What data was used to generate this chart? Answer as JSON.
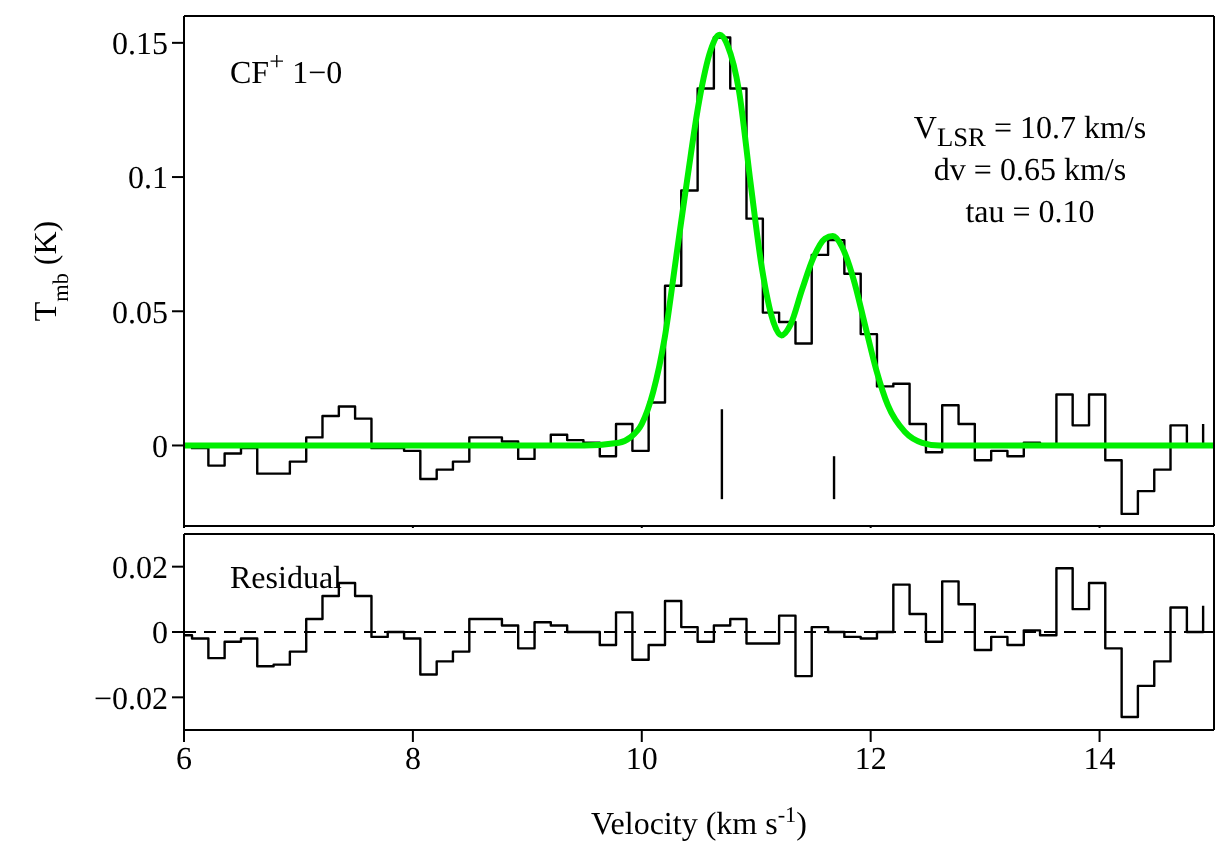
{
  "chart_data": [
    {
      "type": "line",
      "ylabel": "T$_{mb}$ (K)",
      "annotations": [
        "CF$^{+}$ 1−0",
        "V$_{LSR}$ = 10.7 km/s",
        "dv = 0.65 km/s",
        "tau = 0.10"
      ],
      "xlim": [
        6,
        15
      ],
      "xticks": [
        6,
        8,
        10,
        12,
        14
      ],
      "ylim": [
        -0.03,
        0.16
      ],
      "yticks": [
        0,
        0.05,
        0.1,
        0.15
      ],
      "tick_labels": "y",
      "series": [
        {
          "type": "step",
          "color": "#000000",
          "x": [
            6,
            6.07,
            6.213,
            6.355,
            6.498,
            6.64,
            6.783,
            6.925,
            7.068,
            7.21,
            7.353,
            7.495,
            7.638,
            7.78,
            7.923,
            8.065,
            8.208,
            8.35,
            8.493,
            8.635,
            8.778,
            8.92,
            9.063,
            9.205,
            9.348,
            9.49,
            9.633,
            9.775,
            9.918,
            10.06,
            10.203,
            10.345,
            10.488,
            10.63,
            10.773,
            10.915,
            11.058,
            11.2,
            11.343,
            11.485,
            11.628,
            11.77,
            11.913,
            12.055,
            12.198,
            12.34,
            12.483,
            12.625,
            12.768,
            12.91,
            13.053,
            13.195,
            13.338,
            13.48,
            13.623,
            13.765,
            13.908,
            14.05,
            14.193,
            14.335,
            14.478,
            14.62,
            14.763,
            14.905
          ],
          "values": [
            0,
            -0.001,
            -0.0075,
            -0.003,
            -0.001,
            -0.0105,
            -0.0105,
            -0.006,
            0.003,
            0.011,
            0.0145,
            0.01,
            -0.001,
            -0.001,
            -0.002,
            -0.0125,
            -0.009,
            -0.006,
            0.003,
            0.003,
            0.0015,
            -0.005,
            0,
            0.004,
            0.002,
            0.001,
            -0.004,
            0.008,
            -0.002,
            0.016,
            0.0595,
            0.095,
            0.133,
            0.152,
            0.133,
            0.0845,
            0.0495,
            0.046,
            0.038,
            0.071,
            0.0765,
            0.064,
            0.0415,
            0.022,
            0.023,
            0.008,
            -0.0025,
            0.015,
            0.008,
            -0.0055,
            -0.002,
            -0.004,
            0.001,
            0,
            0.019,
            0.0075,
            0.019,
            -0.0055,
            -0.0255,
            -0.017,
            -0.009,
            0.0075,
            0,
            0.008
          ]
        },
        {
          "type": "line",
          "color": "#00ee00",
          "x": [
            6,
            9.5,
            9.8,
            9.9,
            10.0,
            10.1,
            10.2,
            10.3,
            10.4,
            10.5,
            10.6,
            10.68,
            10.75,
            10.85,
            10.95,
            11.05,
            11.15,
            11.22,
            11.3,
            11.4,
            11.5,
            11.6,
            11.67,
            11.75,
            11.85,
            11.95,
            12.05,
            12.15,
            12.3,
            12.45,
            12.6,
            15
          ],
          "values": [
            0,
            0,
            0.001,
            0.003,
            0.008,
            0.02,
            0.04,
            0.07,
            0.1,
            0.128,
            0.147,
            0.153,
            0.149,
            0.132,
            0.098,
            0.066,
            0.046,
            0.041,
            0.045,
            0.058,
            0.07,
            0.077,
            0.078,
            0.074,
            0.062,
            0.045,
            0.028,
            0.015,
            0.005,
            0.001,
            0,
            0
          ]
        },
        {
          "type": "line",
          "color": "#000000",
          "x": [
            10.7,
            10.7
          ],
          "values": [
            0.0135,
            -0.02
          ]
        },
        {
          "type": "line",
          "color": "#000000",
          "x": [
            11.68,
            11.68
          ],
          "values": [
            -0.004,
            -0.02
          ]
        }
      ]
    },
    {
      "type": "line",
      "xlabel": "Velocity (km s$^{-1}$)",
      "annotations": [
        "Residual"
      ],
      "xlim": [
        6,
        15
      ],
      "xticks": [
        6,
        8,
        10,
        12,
        14
      ],
      "ylim": [
        -0.03,
        0.03
      ],
      "yticks": [
        {
          "value": -0.02,
          "label": "−0.02"
        },
        0,
        0.02
      ],
      "ref_lines": [
        {
          "axis": "y",
          "value": 0,
          "line_style": "dashed",
          "color": "#000000"
        }
      ],
      "series": [
        {
          "type": "step",
          "color": "#000000",
          "x": [
            6,
            6.07,
            6.213,
            6.355,
            6.498,
            6.64,
            6.783,
            6.925,
            7.068,
            7.21,
            7.353,
            7.495,
            7.638,
            7.78,
            7.923,
            8.065,
            8.208,
            8.35,
            8.493,
            8.635,
            8.778,
            8.92,
            9.063,
            9.205,
            9.348,
            9.49,
            9.633,
            9.775,
            9.918,
            10.06,
            10.203,
            10.345,
            10.488,
            10.63,
            10.773,
            10.915,
            11.058,
            11.2,
            11.343,
            11.485,
            11.628,
            11.77,
            11.913,
            12.055,
            12.198,
            12.34,
            12.483,
            12.625,
            12.768,
            12.91,
            13.053,
            13.195,
            13.338,
            13.48,
            13.623,
            13.765,
            13.908,
            14.05,
            14.193,
            14.335,
            14.478,
            14.62,
            14.763,
            14.905
          ],
          "values": [
            -0.001,
            -0.002,
            -0.008,
            -0.003,
            -0.002,
            -0.0105,
            -0.01,
            -0.006,
            0.004,
            0.011,
            0.015,
            0.011,
            -0.0015,
            0,
            -0.002,
            -0.013,
            -0.009,
            -0.006,
            0.004,
            0.004,
            0.002,
            -0.005,
            0.003,
            0.002,
            0,
            0,
            -0.004,
            0.006,
            -0.0085,
            -0.004,
            0.0095,
            0.0015,
            -0.003,
            0.002,
            0.004,
            -0.0035,
            -0.0035,
            0.005,
            -0.0135,
            0.0015,
            0,
            -0.0015,
            -0.002,
            0,
            0.0145,
            0.0055,
            -0.003,
            0.0155,
            0.0085,
            -0.0055,
            -0.0015,
            -0.004,
            0.0005,
            -0.001,
            0.0195,
            0.007,
            0.015,
            -0.005,
            -0.026,
            -0.0165,
            -0.009,
            0.0075,
            0,
            0.008
          ]
        }
      ]
    }
  ]
}
